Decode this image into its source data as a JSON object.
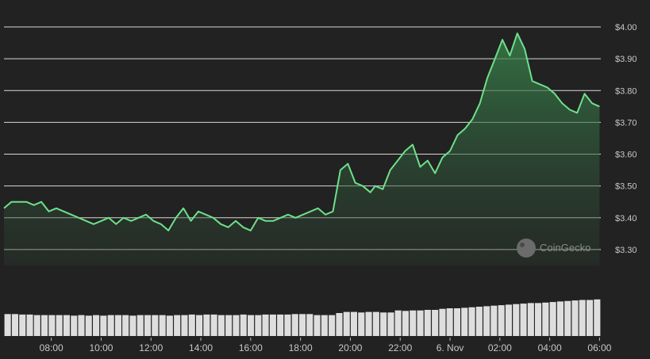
{
  "chart_data": {
    "type": "line",
    "title": "",
    "xlabel": "",
    "ylabel": "",
    "ylim": [
      3.25,
      4.03
    ],
    "y_ticks": [
      3.3,
      3.4,
      3.5,
      3.6,
      3.7,
      3.8,
      3.9,
      4.0
    ],
    "y_tick_labels": [
      "$3.30",
      "$3.40",
      "$3.50",
      "$3.60",
      "$3.70",
      "$3.80",
      "$3.90",
      "$4.00"
    ],
    "x_tick_labels": [
      "08:00",
      "10:00",
      "12:00",
      "14:00",
      "16:00",
      "18:00",
      "20:00",
      "22:00",
      "6. Nov",
      "02:00",
      "04:00",
      "06:00"
    ],
    "x_unit": "hours since 08:00",
    "x_ticks": [
      0,
      2,
      4,
      6,
      8,
      10,
      12,
      14,
      16,
      18,
      20,
      22
    ],
    "x_range": [
      -1.9,
      22.05
    ],
    "grid": true,
    "line_color": "#6ee08a",
    "watermark": "CoinGecko",
    "price_x": [
      -1.9,
      -1.6,
      -1.3,
      -1.0,
      -0.7,
      -0.4,
      -0.1,
      0.2,
      0.5,
      0.8,
      1.1,
      1.4,
      1.7,
      2.0,
      2.3,
      2.6,
      2.9,
      3.2,
      3.5,
      3.8,
      4.1,
      4.4,
      4.7,
      5.0,
      5.3,
      5.6,
      5.9,
      6.2,
      6.5,
      6.8,
      7.1,
      7.4,
      7.7,
      8.0,
      8.3,
      8.6,
      8.9,
      9.2,
      9.5,
      9.8,
      10.1,
      10.4,
      10.7,
      11.0,
      11.3,
      11.6,
      11.9,
      12.2,
      12.5,
      12.8,
      13.0,
      13.3,
      13.6,
      13.9,
      14.2,
      14.5,
      14.8,
      15.1,
      15.4,
      15.7,
      16.0,
      16.3,
      16.6,
      16.9,
      17.2,
      17.5,
      17.8,
      18.1,
      18.4,
      18.7,
      19.0,
      19.3,
      19.6,
      19.9,
      20.2,
      20.5,
      20.8,
      21.1,
      21.4,
      21.7,
      22.0
    ],
    "price_y": [
      3.43,
      3.45,
      3.45,
      3.45,
      3.44,
      3.45,
      3.42,
      3.43,
      3.42,
      3.41,
      3.4,
      3.39,
      3.38,
      3.39,
      3.4,
      3.38,
      3.4,
      3.39,
      3.4,
      3.41,
      3.39,
      3.38,
      3.36,
      3.4,
      3.43,
      3.39,
      3.42,
      3.41,
      3.4,
      3.38,
      3.37,
      3.39,
      3.37,
      3.36,
      3.4,
      3.39,
      3.39,
      3.4,
      3.41,
      3.4,
      3.41,
      3.42,
      3.43,
      3.41,
      3.42,
      3.55,
      3.57,
      3.51,
      3.5,
      3.48,
      3.5,
      3.49,
      3.55,
      3.58,
      3.61,
      3.63,
      3.56,
      3.58,
      3.54,
      3.59,
      3.61,
      3.66,
      3.68,
      3.71,
      3.76,
      3.84,
      3.9,
      3.96,
      3.91,
      3.98,
      3.93,
      3.83,
      3.82,
      3.81,
      3.79,
      3.76,
      3.74,
      3.73,
      3.79,
      3.76,
      3.75
    ],
    "volume": [
      0.42,
      0.42,
      0.41,
      0.41,
      0.4,
      0.4,
      0.4,
      0.4,
      0.4,
      0.39,
      0.4,
      0.39,
      0.4,
      0.39,
      0.4,
      0.4,
      0.4,
      0.39,
      0.4,
      0.4,
      0.4,
      0.4,
      0.39,
      0.4,
      0.4,
      0.41,
      0.4,
      0.41,
      0.41,
      0.4,
      0.4,
      0.4,
      0.41,
      0.4,
      0.4,
      0.41,
      0.41,
      0.41,
      0.41,
      0.42,
      0.42,
      0.42,
      0.4,
      0.4,
      0.4,
      0.44,
      0.46,
      0.46,
      0.45,
      0.46,
      0.46,
      0.45,
      0.45,
      0.49,
      0.48,
      0.49,
      0.49,
      0.5,
      0.5,
      0.52,
      0.53,
      0.53,
      0.54,
      0.55,
      0.56,
      0.57,
      0.58,
      0.59,
      0.6,
      0.61,
      0.62,
      0.63,
      0.63,
      0.64,
      0.65,
      0.66,
      0.67,
      0.68,
      0.69,
      0.69,
      0.7
    ]
  }
}
